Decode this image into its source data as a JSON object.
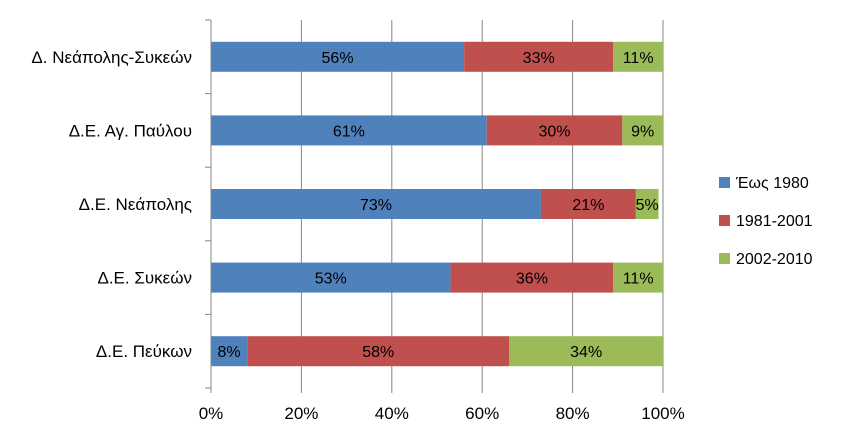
{
  "chart_data": {
    "type": "bar",
    "orientation": "horizontal",
    "stacked": "percent",
    "categories": [
      "Δ. Νεάπολης-Συκεών",
      "Δ.Ε. Αγ. Παύλου",
      "Δ.Ε. Νεάπολης",
      "Δ.Ε. Συκεών",
      "Δ.Ε. Πεύκων"
    ],
    "series": [
      {
        "name": "Έως 1980",
        "color": "#4F81BD",
        "values": [
          56,
          61,
          73,
          53,
          8
        ],
        "labels": [
          "56%",
          "61%",
          "73%",
          "53%",
          "8%"
        ]
      },
      {
        "name": "1981-2001",
        "color": "#C0504D",
        "values": [
          33,
          30,
          21,
          36,
          58
        ],
        "labels": [
          "33%",
          "30%",
          "21%",
          "36%",
          "58%"
        ]
      },
      {
        "name": "2002-2010",
        "color": "#9BBB59",
        "values": [
          11,
          9,
          5,
          11,
          34
        ],
        "labels": [
          "11%",
          "9%",
          "5%",
          "11%",
          "34%"
        ]
      }
    ],
    "xlim": [
      0,
      100
    ],
    "xticks": [
      0,
      20,
      40,
      60,
      80,
      100
    ],
    "xtick_labels": [
      "0%",
      "20%",
      "40%",
      "60%",
      "80%",
      "100%"
    ],
    "grid": "vertical",
    "legend": "right",
    "title": "",
    "xlabel": "",
    "ylabel": ""
  }
}
